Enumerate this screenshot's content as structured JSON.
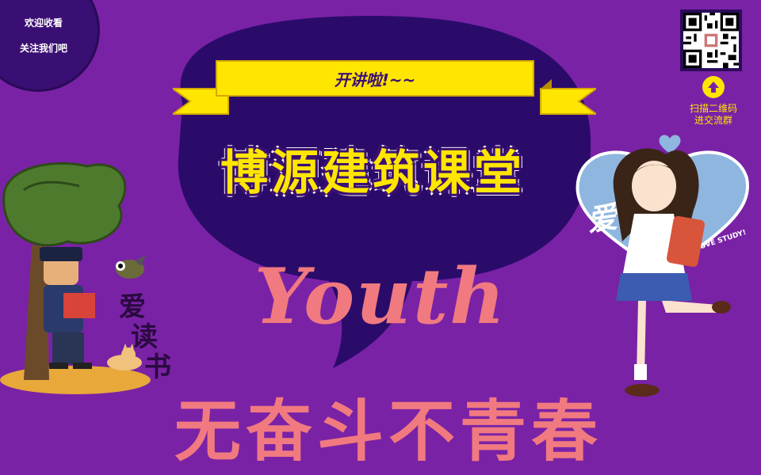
{
  "badge": {
    "line1": "欢迎收看",
    "line2": "关注我们吧"
  },
  "ribbon": {
    "label": "开讲啦!~~"
  },
  "title": "博源建筑课堂",
  "youth": "Youth",
  "slogan": "无奋斗不青春",
  "qr": {
    "hint_line1": "扫描二维码",
    "hint_line2": "进交流群"
  },
  "illustration_left": {
    "caption_chars": [
      "爱",
      "读",
      "书"
    ]
  },
  "illustration_right": {
    "heart_text": "爱学习",
    "heart_subtext": "I LOVE STUDY!"
  },
  "colors": {
    "background": "#7a22a6",
    "bubble": "#2b0b6a",
    "accent_yellow": "#ffe600",
    "coral": "#f07a7f"
  }
}
